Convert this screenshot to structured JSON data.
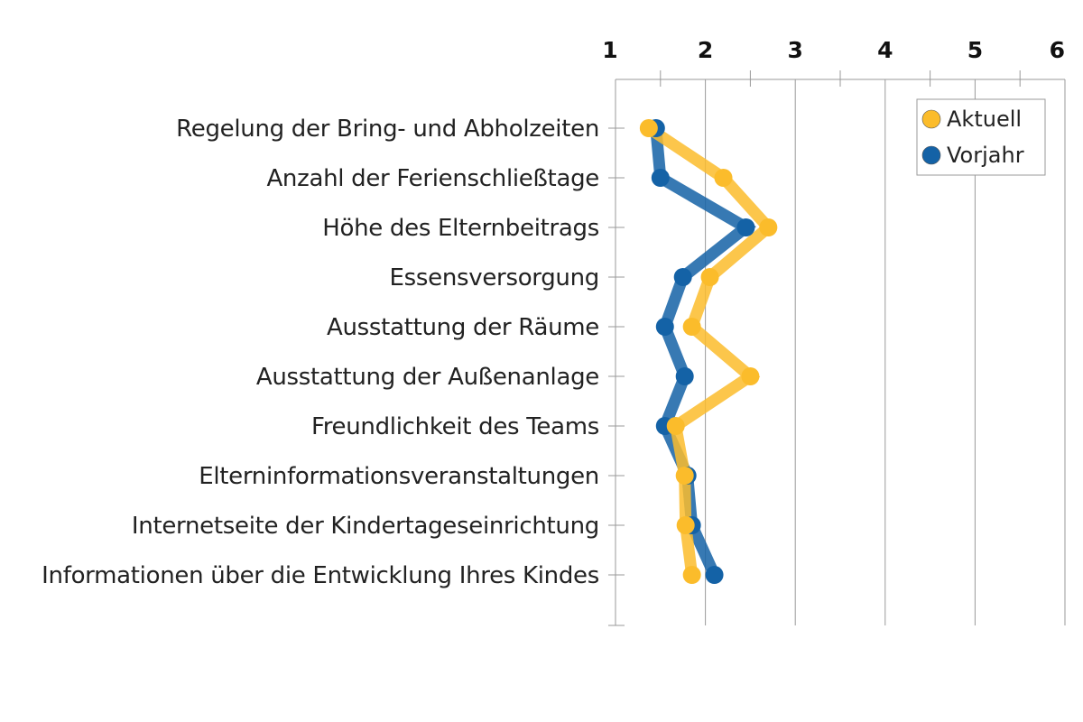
{
  "chart_data": {
    "type": "line",
    "orientation": "horizontal-values",
    "x_axis_position": "top",
    "xlim": [
      1,
      6
    ],
    "x_ticks": [
      "1",
      "2",
      "3",
      "4",
      "5",
      "6"
    ],
    "grid": true,
    "legend_placement": "top-right",
    "categories": [
      "Regelung der Bring- und Abholzeiten",
      "Anzahl der Ferienschließtage",
      "Höhe des Elternbeitrags",
      "Essensversorgung",
      "Ausstattung der Räume",
      "Ausstattung der Außenanlage",
      "Freundlichkeit des Teams",
      "Elterninformationsveranstaltungen",
      "Internetseite der Kindertageseinrichtung",
      "Informationen über die Entwicklung Ihres Kindes"
    ],
    "series": [
      {
        "name": "Vorjahr",
        "color": "#1462a6",
        "values": [
          1.45,
          1.5,
          2.45,
          1.75,
          1.55,
          1.77,
          1.55,
          1.8,
          1.85,
          2.1
        ]
      },
      {
        "name": "Aktuell",
        "color": "#fbbc2b",
        "values": [
          1.37,
          2.2,
          2.7,
          2.05,
          1.85,
          2.5,
          1.67,
          1.77,
          1.78,
          1.85
        ]
      }
    ]
  }
}
